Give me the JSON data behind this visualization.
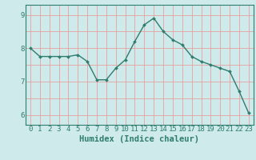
{
  "x": [
    0,
    1,
    2,
    3,
    4,
    5,
    6,
    7,
    8,
    9,
    10,
    11,
    12,
    13,
    14,
    15,
    16,
    17,
    18,
    19,
    20,
    21,
    22,
    23
  ],
  "y": [
    8.0,
    7.75,
    7.75,
    7.75,
    7.75,
    7.8,
    7.6,
    7.05,
    7.05,
    7.4,
    7.65,
    8.2,
    8.7,
    8.9,
    8.5,
    8.25,
    8.1,
    7.75,
    7.6,
    7.5,
    7.4,
    7.3,
    6.7,
    6.05
  ],
  "line_color": "#2e7d6e",
  "marker": "D",
  "marker_size": 2.0,
  "bg_color": "#ceeaea",
  "grid_color": "#e8a0a0",
  "axis_color": "#2e7d6e",
  "xlabel": "Humidex (Indice chaleur)",
  "xlabel_fontsize": 7.5,
  "ylabel_ticks": [
    6,
    7,
    8,
    9
  ],
  "ylim": [
    5.7,
    9.3
  ],
  "xlim": [
    -0.5,
    23.5
  ],
  "xtick_labels": [
    "0",
    "1",
    "2",
    "3",
    "4",
    "5",
    "6",
    "7",
    "8",
    "9",
    "10",
    "11",
    "12",
    "13",
    "14",
    "15",
    "16",
    "17",
    "18",
    "19",
    "20",
    "21",
    "22",
    "23"
  ],
  "tick_fontsize": 6.5,
  "line_width": 1.0
}
